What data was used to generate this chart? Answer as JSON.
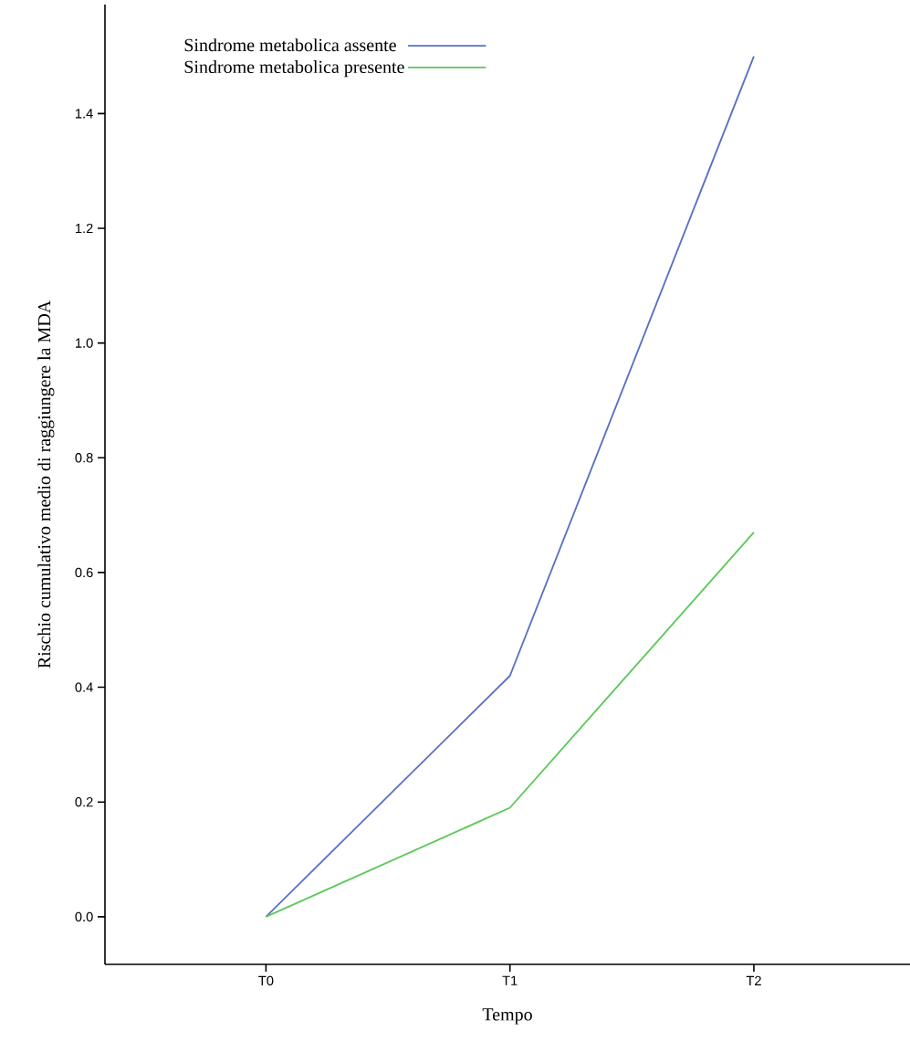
{
  "chart_data": {
    "type": "line",
    "xlabel": "Tempo",
    "ylabel": "Rischio cumulativo medio di raggiungere la MDA",
    "categories": [
      "T0",
      "T1",
      "T2"
    ],
    "series": [
      {
        "name": "Sindrome metabolica assente",
        "color": "#5b70c4",
        "values": [
          0,
          0.42,
          1.5
        ]
      },
      {
        "name": "Sindrome metabolica presente",
        "color": "#5cc85a",
        "values": [
          0,
          0.19,
          0.67
        ]
      }
    ],
    "ylim": [
      -0.083,
      1.59
    ],
    "yticks": [
      {
        "value": 0,
        "label": "0.0"
      },
      {
        "value": 0.2,
        "label": "0.2"
      },
      {
        "value": 0.4,
        "label": "0.4"
      },
      {
        "value": 0.6,
        "label": "0.6"
      },
      {
        "value": 0.8,
        "label": "0.8"
      },
      {
        "value": 1,
        "label": "1.0"
      },
      {
        "value": 1.2,
        "label": "1.2"
      },
      {
        "value": 1.4,
        "label": "1.4"
      }
    ],
    "legend": "top left",
    "grid": false,
    "marker": "none",
    "line_style": "solid"
  }
}
